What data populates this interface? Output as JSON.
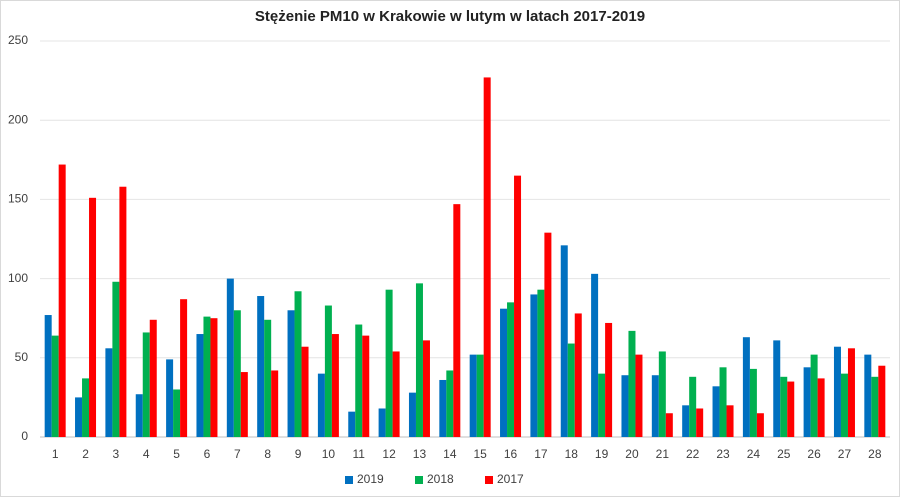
{
  "chart_data": {
    "type": "bar",
    "title": "Stężenie PM10 w Krakowie w lutym w latach 2017-2019",
    "categories": [
      "1",
      "2",
      "3",
      "4",
      "5",
      "6",
      "7",
      "8",
      "9",
      "10",
      "11",
      "12",
      "13",
      "14",
      "15",
      "16",
      "17",
      "18",
      "19",
      "20",
      "21",
      "22",
      "23",
      "24",
      "25",
      "26",
      "27",
      "28"
    ],
    "series": [
      {
        "name": "2019",
        "color": "#0070c0",
        "values": [
          77,
          25,
          56,
          27,
          49,
          65,
          100,
          89,
          80,
          40,
          16,
          18,
          28,
          36,
          52,
          81,
          90,
          121,
          103,
          39,
          39,
          20,
          32,
          63,
          61,
          44,
          57,
          52
        ]
      },
      {
        "name": "2018",
        "color": "#00b050",
        "values": [
          64,
          37,
          98,
          66,
          30,
          76,
          80,
          74,
          92,
          83,
          71,
          93,
          97,
          42,
          52,
          85,
          93,
          59,
          40,
          67,
          54,
          38,
          44,
          43,
          38,
          52,
          40,
          38
        ]
      },
      {
        "name": "2017",
        "color": "#ff0000",
        "values": [
          172,
          151,
          158,
          74,
          87,
          75,
          41,
          42,
          57,
          65,
          64,
          54,
          61,
          147,
          227,
          165,
          129,
          78,
          72,
          52,
          15,
          18,
          20,
          15,
          35,
          37,
          56,
          45
        ]
      }
    ],
    "ylim": [
      0,
      250
    ],
    "yticks": [
      0,
      50,
      100,
      150,
      200,
      250
    ],
    "grid": true,
    "legend": "bottom"
  }
}
